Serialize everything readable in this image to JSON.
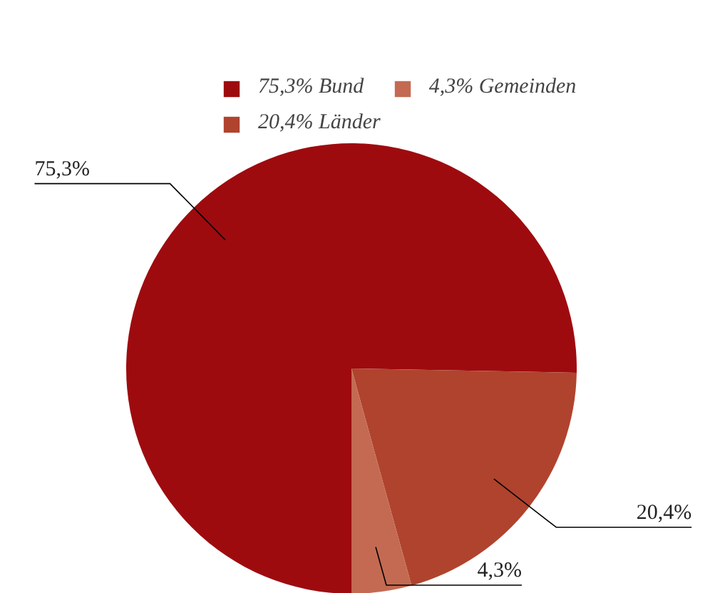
{
  "chart_data": {
    "type": "pie",
    "categories": [
      "Bund",
      "Länder",
      "Gemeinden"
    ],
    "values": [
      75.3,
      20.4,
      4.3
    ],
    "colors": [
      "#9e0b0f",
      "#b0432e",
      "#c46a52"
    ],
    "value_labels": [
      "75,3%",
      "20,4%",
      "4,3%"
    ],
    "legend": "top"
  }
}
